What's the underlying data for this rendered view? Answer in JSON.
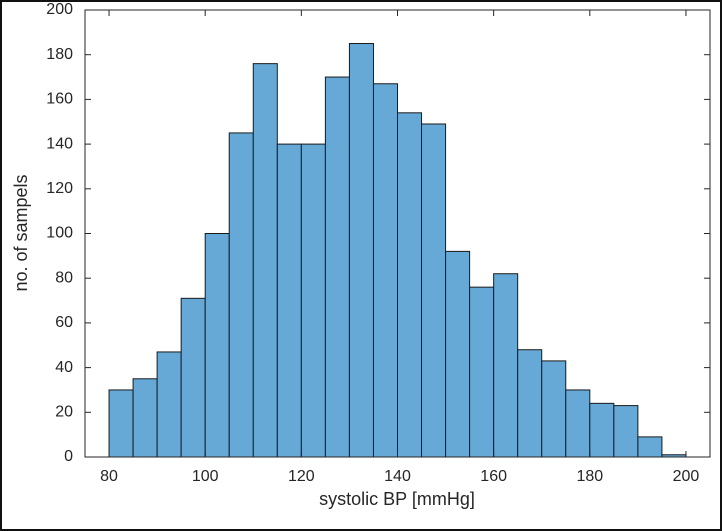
{
  "chart_data": {
    "type": "histogram",
    "xlabel": "systolic BP [mmHg]",
    "ylabel": "no. of sampels",
    "bins": [
      80,
      85,
      90,
      95,
      100,
      105,
      110,
      115,
      120,
      125,
      130,
      135,
      140,
      145,
      150,
      155,
      160,
      165,
      170,
      175,
      180,
      185,
      190,
      195,
      200
    ],
    "counts": [
      30,
      35,
      47,
      71,
      100,
      145,
      176,
      140,
      140,
      170,
      185,
      167,
      154,
      149,
      92,
      76,
      82,
      48,
      43,
      30,
      24,
      23,
      9,
      1
    ],
    "color": "#66a9d7",
    "xlim": [
      75,
      205
    ],
    "xticks": [
      80,
      100,
      120,
      140,
      160,
      180,
      200
    ],
    "ylim": [
      0,
      200
    ],
    "yticks": [
      0,
      20,
      40,
      60,
      80,
      100,
      120,
      140,
      160,
      180,
      200
    ]
  }
}
